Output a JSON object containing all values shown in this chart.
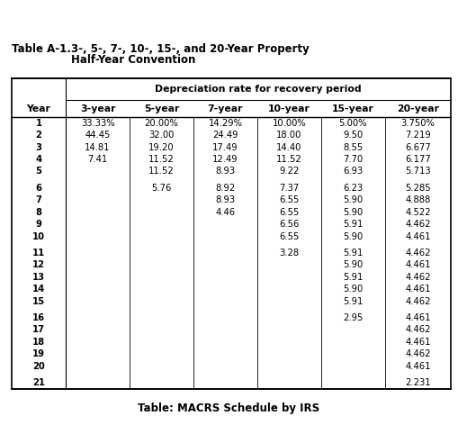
{
  "title_label": "Table A-1.",
  "title_main": "3-, 5-, 7-, 10-, 15-, and 20-Year Property",
  "title_sub": "Half-Year Convention",
  "subtitle": "Depreciation rate for recovery period",
  "col_headers": [
    "Year",
    "3-year",
    "5-year",
    "7-year",
    "10-year",
    "15-year",
    "20-year"
  ],
  "caption": "Table: MACRS Schedule by IRS",
  "rows": [
    [
      "1",
      "33.33%",
      "20.00%",
      "14.29%",
      "10.00%",
      "5.00%",
      "3.750%"
    ],
    [
      "2",
      "44.45",
      "32.00",
      "24.49",
      "18.00",
      "9.50",
      "7.219"
    ],
    [
      "3",
      "14.81",
      "19.20",
      "17.49",
      "14.40",
      "8.55",
      "6.677"
    ],
    [
      "4",
      "7.41",
      "11.52",
      "12.49",
      "11.52",
      "7.70",
      "6.177"
    ],
    [
      "5",
      "",
      "11.52",
      "8.93",
      "9.22",
      "6.93",
      "5.713"
    ],
    [
      "6",
      "",
      "5.76",
      "8.92",
      "7.37",
      "6.23",
      "5.285"
    ],
    [
      "7",
      "",
      "",
      "8.93",
      "6.55",
      "5.90",
      "4.888"
    ],
    [
      "8",
      "",
      "",
      "4.46",
      "6.55",
      "5.90",
      "4.522"
    ],
    [
      "9",
      "",
      "",
      "",
      "6.56",
      "5.91",
      "4.462"
    ],
    [
      "10",
      "",
      "",
      "",
      "6.55",
      "5.90",
      "4.461"
    ],
    [
      "11",
      "",
      "",
      "",
      "3.28",
      "5.91",
      "4.462"
    ],
    [
      "12",
      "",
      "",
      "",
      "",
      "5.90",
      "4.461"
    ],
    [
      "13",
      "",
      "",
      "",
      "",
      "5.91",
      "4.462"
    ],
    [
      "14",
      "",
      "",
      "",
      "",
      "5.90",
      "4.461"
    ],
    [
      "15",
      "",
      "",
      "",
      "",
      "5.91",
      "4.462"
    ],
    [
      "16",
      "",
      "",
      "",
      "",
      "2.95",
      "4.461"
    ],
    [
      "17",
      "",
      "",
      "",
      "",
      "",
      "4.462"
    ],
    [
      "18",
      "",
      "",
      "",
      "",
      "",
      "4.461"
    ],
    [
      "19",
      "",
      "",
      "",
      "",
      "",
      "4.462"
    ],
    [
      "20",
      "",
      "",
      "",
      "",
      "",
      "4.461"
    ],
    [
      "21",
      "",
      "",
      "",
      "",
      "",
      "2.231"
    ]
  ],
  "group_breaks_after": [
    5,
    10,
    15,
    20
  ],
  "bg_color": "#ffffff",
  "border_color": "#000000",
  "text_color": "#000000",
  "font_size": 7.2,
  "header_font_size": 7.8,
  "title_font_size": 8.5,
  "caption_font_size": 8.5
}
